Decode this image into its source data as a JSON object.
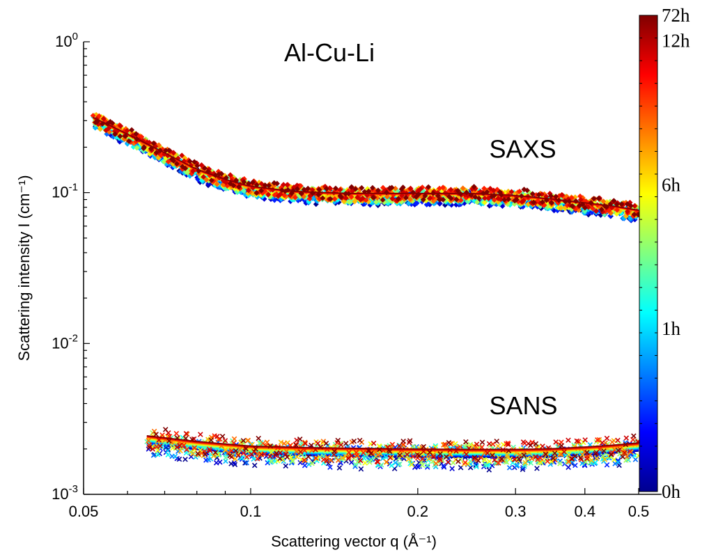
{
  "chart_data": {
    "type": "scatter",
    "title": "Al-Cu-Li",
    "xlabel": "Scattering vector q (Å⁻¹)",
    "ylabel": "Scattering intensity I (cm⁻¹)",
    "xscale": "log",
    "yscale": "log",
    "xlim": [
      0.05,
      0.55
    ],
    "ylim": [
      0.001,
      1
    ],
    "xticks": [
      {
        "value": 0.05,
        "label": "0.05"
      },
      {
        "value": 0.1,
        "label": "0.1"
      },
      {
        "value": 0.2,
        "label": "0.2"
      },
      {
        "value": 0.3,
        "label": "0.3"
      },
      {
        "value": 0.4,
        "label": "0.4"
      },
      {
        "value": 0.5,
        "label": "0.5"
      }
    ],
    "yticks": [
      {
        "value": 1,
        "base": "10",
        "exp": "0"
      },
      {
        "value": 0.1,
        "base": "10",
        "exp": "-1"
      },
      {
        "value": 0.01,
        "base": "10",
        "exp": "-2"
      },
      {
        "value": 0.001,
        "base": "10",
        "exp": "-3"
      }
    ],
    "annotations": [
      {
        "text": "SAXS",
        "q": 0.32,
        "I": 0.17
      },
      {
        "text": "SANS",
        "q": 0.32,
        "I": 0.0034
      }
    ],
    "series": [
      {
        "group": "SAXS",
        "marker": "diamond",
        "q": [
          0.052,
          0.06,
          0.07,
          0.08,
          0.09,
          0.1,
          0.12,
          0.15,
          0.2,
          0.25,
          0.3,
          0.35,
          0.4,
          0.45,
          0.5
        ],
        "I": [
          0.31,
          0.24,
          0.18,
          0.14,
          0.12,
          0.108,
          0.1,
          0.097,
          0.097,
          0.097,
          0.094,
          0.089,
          0.084,
          0.08,
          0.075
        ]
      },
      {
        "group": "SANS",
        "marker": "x",
        "q": [
          0.065,
          0.08,
          0.1,
          0.13,
          0.16,
          0.2,
          0.25,
          0.3,
          0.35,
          0.4,
          0.45,
          0.5
        ],
        "I": [
          0.0024,
          0.0022,
          0.00205,
          0.002,
          0.00198,
          0.00196,
          0.00195,
          0.00195,
          0.00197,
          0.00202,
          0.00208,
          0.00215
        ]
      }
    ],
    "colorbar": {
      "colormap": "jet",
      "colors": [
        "#00008f",
        "#0000ff",
        "#0080ff",
        "#00ffff",
        "#80ff80",
        "#ffff00",
        "#ff8000",
        "#ff0000",
        "#800000"
      ],
      "labels": [
        {
          "text": "72h",
          "pos": 1.0
        },
        {
          "text": "12h",
          "pos": 0.947
        },
        {
          "text": "6h",
          "pos": 0.644
        },
        {
          "text": "1h",
          "pos": 0.342
        },
        {
          "text": "0h",
          "pos": 0.0
        }
      ],
      "tick_count": 21
    }
  }
}
